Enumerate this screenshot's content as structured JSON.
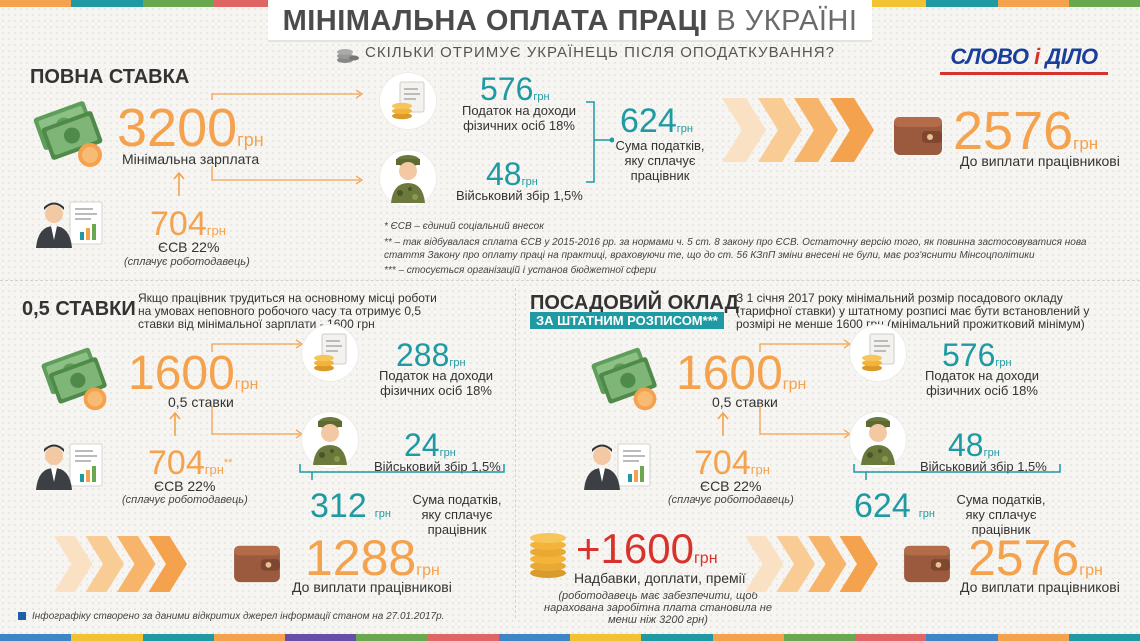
{
  "header": {
    "title_bold": "МІНІМАЛЬНА ОПЛАТА ПРАЦІ",
    "title_light": "В УКРАЇНІ",
    "subtitle": "СКІЛЬКИ ОТРИМУЄ УКРАЇНЕЦЬ ПІСЛЯ ОПОДАТКУВАННЯ?",
    "logo_left": "СЛОВО",
    "logo_i": "і",
    "logo_right": "ДІЛО"
  },
  "currency": "грн",
  "full_rate": {
    "title": "ПОВНА СТАВКА",
    "salary_value": "3200",
    "salary_label": "Мінімальна зарплата",
    "esv_value": "704",
    "esv_label": "ЄСВ 22%",
    "esv_note": "(сплачує роботодавець)",
    "income_tax_value": "576",
    "income_tax_label": "Податок на доходи фізичних осіб 18%",
    "military_value": "48",
    "military_label": "Військовий збір 1,5%",
    "total_tax_value": "624",
    "total_tax_label": "Сума податків, яку сплачує працівник",
    "net_value": "2576",
    "net_label": "До виплати працівникові"
  },
  "footnotes": {
    "n1": "* ЄСВ – єдиний соціальний внесок",
    "n2": "** – так відбувалася сплата ЄСВ у 2015-2016 рр. за нормами ч. 5 ст. 8 закону про ЄСВ. Остаточну версію того, як повинна застосовуватися нова стаття Закону про оплату праці на практиці, враховуючи те, що до ст. 56 КЗпП зміни внесені не були, має роз'яснити Мінсоцполітики",
    "n3": "*** – стосується організацій і установ бюджетної сфери"
  },
  "half_rate": {
    "title": "0,5 СТАВКИ",
    "description": "Якщо працівник трудиться на основному місці роботи на умовах неповного робочого часу та отримує 0,5 ставки від мінімальної зарплати - 1600 грн",
    "salary_value": "1600",
    "salary_label": "0,5 ставки",
    "esv_value": "704",
    "esv_mark": "**",
    "esv_label": "ЄСВ 22%",
    "esv_note": "(сплачує роботодавець)",
    "income_tax_value": "288",
    "income_tax_label": "Податок на доходи фізичних осіб 18%",
    "military_value": "24",
    "military_label": "Військовий збір 1,5%",
    "total_tax_value": "312",
    "total_tax_label": "Сума податків, яку сплачує працівник",
    "net_value": "1288",
    "net_label": "До виплати працівникові"
  },
  "official_salary": {
    "title": "ПОСАДОВИЙ ОКЛАД",
    "subtitle": "ЗА ШТАТНИМ РОЗПИСОМ***",
    "description": "З 1 січня 2017 року мінімальний розмір посадового окладу (тарифної ставки) у штатному розписі має бути встановлений у розмірі не менше 1600 грн (мінімальний прожитковий мінімум)",
    "salary_value": "1600",
    "salary_label": "0,5 ставки",
    "esv_value": "704",
    "esv_label": "ЄСВ 22%",
    "esv_note": "(сплачує роботодавець)",
    "income_tax_value": "576",
    "income_tax_label": "Податок на доходи фізичних осіб 18%",
    "military_value": "48",
    "military_label": "Військовий збір 1,5%",
    "total_tax_value": "624",
    "total_tax_label": "Сума податків, яку сплачує працівник",
    "bonus_value": "+1600",
    "bonus_label": "Надбавки, доплати, премії",
    "bonus_note": "(роботодавець має забезпечити, щоб нарахована заробітна плата становила не менш ніж 3200 грн)",
    "net_value": "2576",
    "net_label": "До виплати працівникові"
  },
  "source_note": "Інфографіку створено за даними відкритих джерел інформації станом на 27.01.2017р.",
  "colors": {
    "orange": "#f4a24d",
    "teal": "#1f9aa3",
    "dark": "#333333",
    "wallet": "#9b5a3e",
    "money": "#5f9d5a",
    "coin": "#f4b43a"
  }
}
